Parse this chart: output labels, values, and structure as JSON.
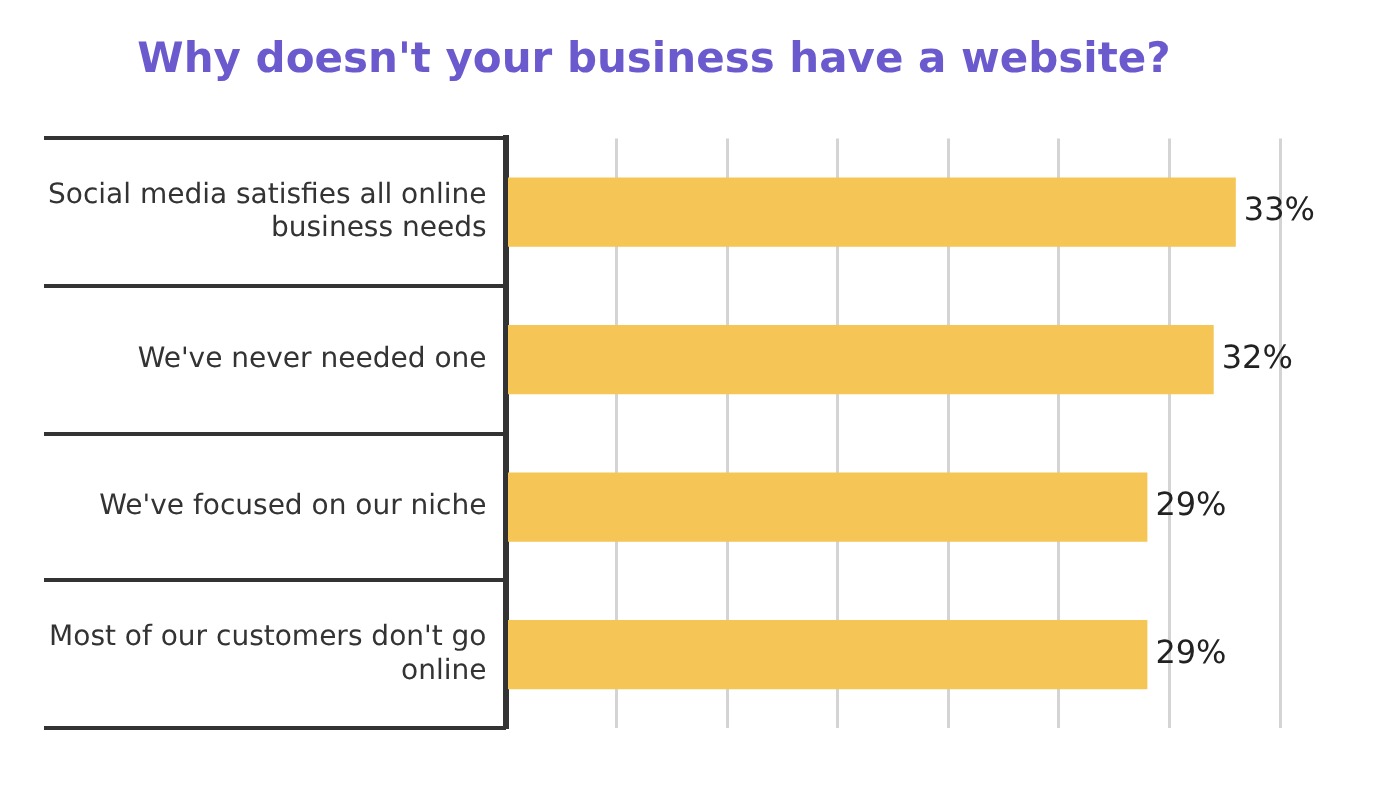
{
  "chart_data": {
    "type": "bar",
    "orientation": "horizontal",
    "title": "Why doesn't your business have a website?",
    "categories": [
      "Social media satisfies all online business needs",
      "We've never needed one",
      "We've focused on our niche",
      "Most of our customers don't go online"
    ],
    "values": [
      33,
      32,
      29,
      29
    ],
    "color": "#f5c555",
    "value_labels": [
      "33%",
      "32%",
      "29%",
      "29%"
    ],
    "grid": "x",
    "tick_labels": "y"
  }
}
